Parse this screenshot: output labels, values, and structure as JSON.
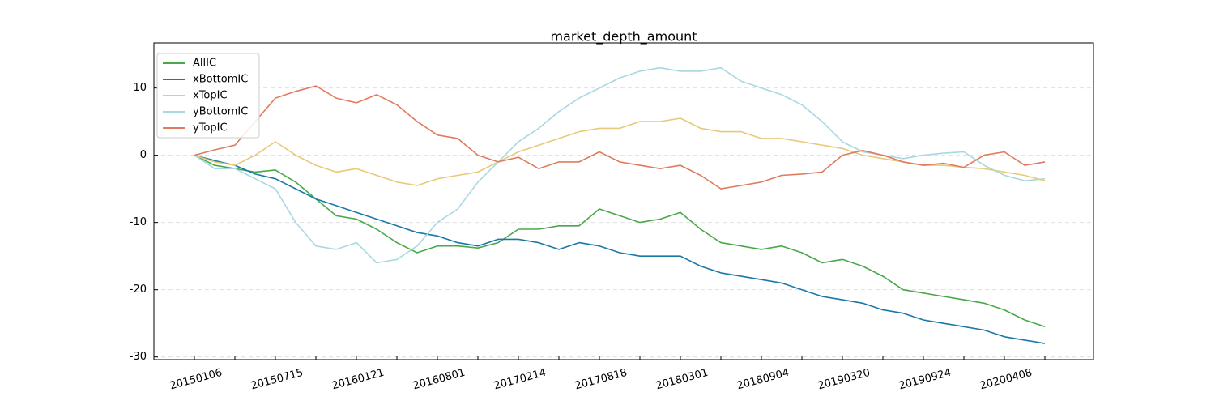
{
  "chart_data": {
    "type": "line",
    "title": "market_depth_amount",
    "categories": [
      "20150106",
      null,
      null,
      null,
      "20150715",
      null,
      null,
      null,
      "20160121",
      null,
      null,
      null,
      "20160801",
      null,
      null,
      null,
      "20170214",
      null,
      null,
      null,
      "20170818",
      null,
      null,
      null,
      "20180301",
      null,
      null,
      null,
      "20180904",
      null,
      null,
      null,
      "20190320",
      null,
      null,
      null,
      "20190924",
      null,
      null,
      null,
      "20200408",
      null,
      null
    ],
    "series": [
      {
        "name": "AllIC",
        "color": "#4aa84a",
        "values": [
          0,
          -1.5,
          -2,
          -2.5,
          -2.2,
          -4,
          -6.5,
          -9,
          -9.5,
          -11,
          -13,
          -14.5,
          -13.5,
          -13.5,
          -13.8,
          -13,
          -11,
          -11,
          -10.5,
          -10.5,
          -8,
          -9,
          -10,
          -9.5,
          -8.5,
          -11,
          -13,
          -13.5,
          -14,
          -13.5,
          -14.5,
          -16,
          -15.5,
          -16.5,
          -18,
          -20,
          -20.5,
          -21,
          -21.5,
          -22,
          -23,
          -24.5,
          -25.5
        ]
      },
      {
        "name": "xBottomIC",
        "color": "#1a78a8",
        "values": [
          0,
          -0.8,
          -1.5,
          -2.8,
          -3.5,
          -5,
          -6.5,
          -7.5,
          -8.5,
          -9.5,
          -10.5,
          -11.5,
          -12,
          -13,
          -13.5,
          -12.5,
          -12.5,
          -13,
          -14,
          -13,
          -13.5,
          -14.5,
          -15,
          -15,
          -15,
          -16.5,
          -17.5,
          -18,
          -18.5,
          -19,
          -20,
          -21,
          -21.5,
          -22,
          -23,
          -23.5,
          -24.5,
          -25,
          -25.5,
          -26,
          -27,
          -27.5,
          -28
        ]
      },
      {
        "name": "xTopIC",
        "color": "#e8c97a",
        "values": [
          0,
          -1,
          -1.5,
          0,
          2,
          0,
          -1.5,
          -2.5,
          -2,
          -3,
          -4,
          -4.5,
          -3.5,
          -3,
          -2.5,
          -1,
          0.5,
          1.5,
          2.5,
          3.5,
          4,
          4,
          5,
          5,
          5.5,
          4,
          3.5,
          3.5,
          2.5,
          2.5,
          2,
          1.5,
          1,
          0,
          -0.5,
          -1,
          -1.5,
          -1.5,
          -1.8,
          -2,
          -2.5,
          -3,
          -3.8
        ]
      },
      {
        "name": "yBottomIC",
        "color": "#a8d8e2",
        "values": [
          0,
          -2,
          -2,
          -3.5,
          -5,
          -10,
          -13.5,
          -14,
          -13,
          -16,
          -15.5,
          -13.5,
          -10,
          -8,
          -4,
          -1,
          2,
          4,
          6.5,
          8.5,
          10,
          11.5,
          12.5,
          13,
          12.5,
          12.5,
          13,
          11,
          10,
          9,
          7.5,
          5,
          2,
          0.5,
          0,
          -0.5,
          0,
          0.3,
          0.5,
          -1.5,
          -3,
          -3.8,
          -3.5
        ]
      },
      {
        "name": "yTopIC",
        "color": "#e07b5f",
        "values": [
          0,
          0.8,
          1.5,
          5,
          8.5,
          9.5,
          10.3,
          8.5,
          7.8,
          9,
          7.5,
          5,
          3,
          2.5,
          0,
          -1,
          -0.3,
          -2,
          -1,
          -1,
          0.5,
          -1,
          -1.5,
          -2,
          -1.5,
          -3,
          -5,
          -4.5,
          -4,
          -3,
          -2.8,
          -2.5,
          0,
          0.7,
          0,
          -1,
          -1.5,
          -1.2,
          -1.8,
          0,
          0.5,
          -1.5,
          -1
        ]
      }
    ],
    "ylim": [
      -30.4,
      16.7
    ],
    "yticks": [
      -30,
      -20,
      -10,
      0,
      10
    ],
    "grid": true,
    "legend": "upper left"
  }
}
